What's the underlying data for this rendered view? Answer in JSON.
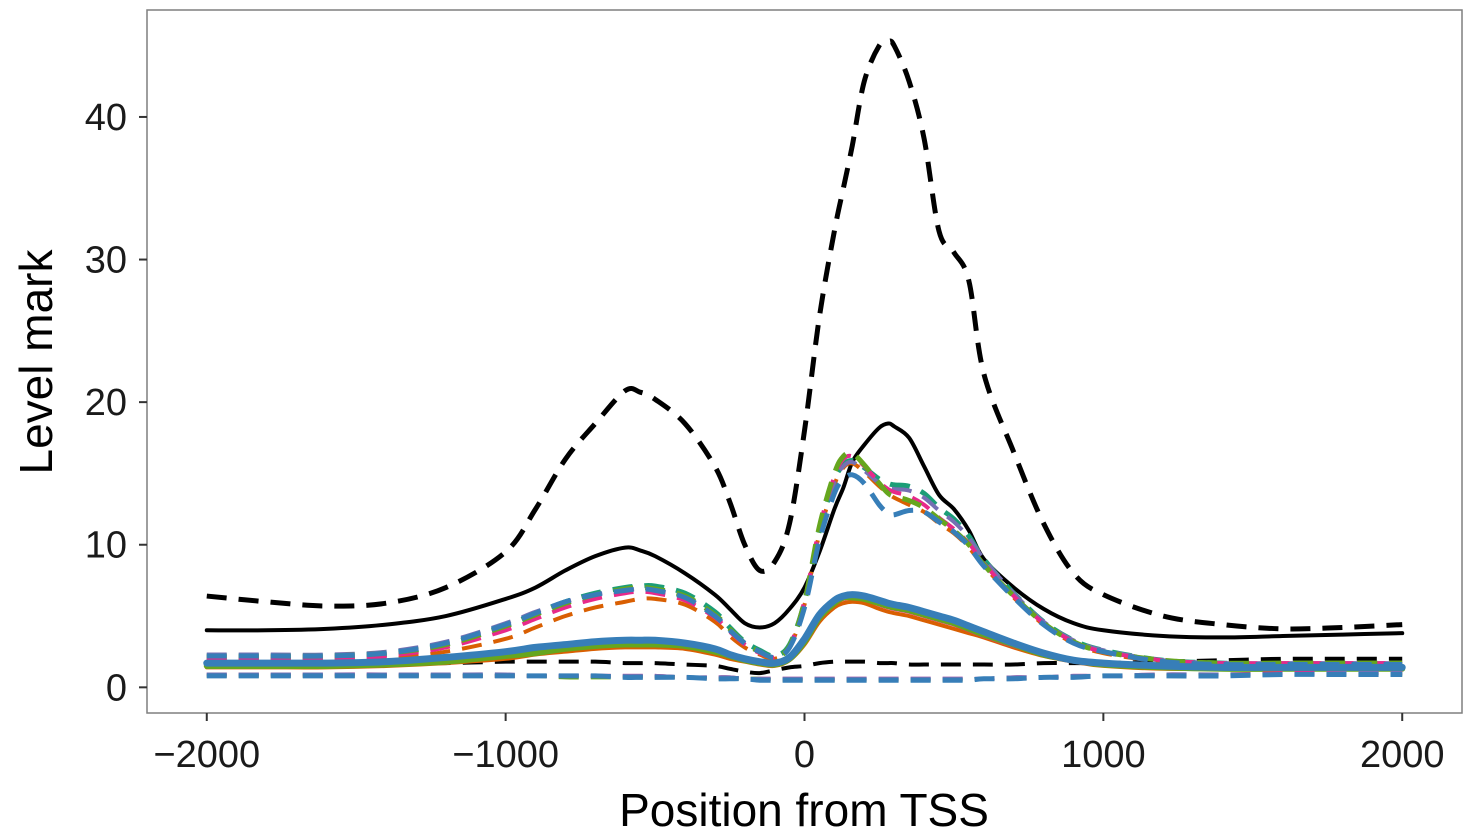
{
  "chart_data": {
    "type": "line",
    "title": "",
    "xlabel": "Position from TSS",
    "ylabel": "Level mark",
    "xlim": [
      -2200,
      2200
    ],
    "ylim": [
      -1.8,
      47.5
    ],
    "x_ticks": [
      -2000,
      -1000,
      0,
      1000,
      2000
    ],
    "x_tick_labels": [
      "−2000",
      "−1000",
      "0",
      "1000",
      "2000"
    ],
    "y_ticks": [
      0,
      10,
      20,
      30,
      40
    ],
    "y_tick_labels": [
      "0",
      "10",
      "20",
      "30",
      "40"
    ],
    "grid": false,
    "legend": "none",
    "x": [
      -2000,
      -1800,
      -1600,
      -1400,
      -1200,
      -1000,
      -900,
      -800,
      -700,
      -600,
      -550,
      -500,
      -400,
      -300,
      -250,
      -200,
      -150,
      -100,
      -50,
      0,
      50,
      100,
      130,
      160,
      200,
      250,
      280,
      300,
      350,
      400,
      450,
      500,
      550,
      600,
      700,
      800,
      900,
      1000,
      1200,
      1400,
      1600,
      1800,
      2000
    ],
    "series": [
      {
        "color": "#000000",
        "dash": "dashed",
        "width": 5,
        "values": [
          6.4,
          6.0,
          5.7,
          5.9,
          7.0,
          9.5,
          12.5,
          16.0,
          18.5,
          20.8,
          20.7,
          20.2,
          18.5,
          15.5,
          13.0,
          10.0,
          8.2,
          8.8,
          11.5,
          18.0,
          26.0,
          32.0,
          35.0,
          38.0,
          42.5,
          45.0,
          45.3,
          45.0,
          42.5,
          38.5,
          32.0,
          30.5,
          28.5,
          22.0,
          16.5,
          11.5,
          8.0,
          6.5,
          5.0,
          4.4,
          4.1,
          4.2,
          4.4
        ]
      },
      {
        "color": "#000000",
        "dash": "solid",
        "width": 4,
        "values": [
          4.0,
          4.0,
          4.1,
          4.4,
          5.0,
          6.2,
          7.0,
          8.2,
          9.2,
          9.8,
          9.6,
          9.2,
          8.0,
          6.5,
          5.5,
          4.5,
          4.2,
          4.5,
          5.5,
          7.0,
          9.5,
          12.5,
          14.0,
          15.8,
          17.0,
          18.2,
          18.5,
          18.3,
          17.5,
          15.5,
          13.5,
          12.5,
          11.0,
          9.0,
          7.0,
          5.5,
          4.5,
          4.0,
          3.6,
          3.5,
          3.6,
          3.7,
          3.8
        ]
      },
      {
        "color": "#000000",
        "dash": "dashed",
        "width": 4,
        "values": [
          1.8,
          1.8,
          1.7,
          1.7,
          1.7,
          1.8,
          1.8,
          1.8,
          1.8,
          1.7,
          1.7,
          1.7,
          1.6,
          1.5,
          1.3,
          1.1,
          1.0,
          1.2,
          1.4,
          1.5,
          1.7,
          1.8,
          1.8,
          1.8,
          1.8,
          1.7,
          1.7,
          1.7,
          1.6,
          1.6,
          1.6,
          1.6,
          1.6,
          1.6,
          1.6,
          1.7,
          1.7,
          1.7,
          1.8,
          1.9,
          2.0,
          2.0,
          2.0
        ]
      },
      {
        "color": "#1b9e77",
        "dash": "dashed",
        "width": 5,
        "values": [
          2.1,
          2.1,
          2.1,
          2.3,
          3.0,
          4.3,
          5.2,
          6.0,
          6.6,
          7.0,
          7.1,
          7.1,
          6.6,
          5.3,
          4.2,
          3.2,
          2.6,
          2.2,
          3.0,
          6.0,
          11.0,
          14.5,
          15.6,
          15.9,
          15.4,
          14.6,
          14.3,
          14.2,
          14.1,
          13.6,
          12.6,
          11.8,
          10.6,
          9.0,
          6.6,
          4.6,
          3.3,
          2.6,
          1.9,
          1.7,
          1.6,
          1.6,
          1.6
        ]
      },
      {
        "color": "#d95f02",
        "dash": "dashed",
        "width": 4,
        "values": [
          1.9,
          1.9,
          1.9,
          2.0,
          2.5,
          3.4,
          4.2,
          5.0,
          5.6,
          6.0,
          6.2,
          6.2,
          5.8,
          4.6,
          3.6,
          2.8,
          2.3,
          2.0,
          2.8,
          5.8,
          10.8,
          14.2,
          15.4,
          15.7,
          15.1,
          14.1,
          13.6,
          13.3,
          12.8,
          12.3,
          11.5,
          10.8,
          9.8,
          8.5,
          6.3,
          4.4,
          3.1,
          2.4,
          1.8,
          1.6,
          1.6,
          1.6,
          1.6
        ]
      },
      {
        "color": "#7570b3",
        "dash": "dashed",
        "width": 4,
        "values": [
          2.3,
          2.3,
          2.3,
          2.5,
          3.2,
          4.5,
          5.3,
          6.0,
          6.5,
          6.8,
          6.9,
          6.8,
          6.3,
          5.0,
          4.0,
          3.1,
          2.5,
          2.1,
          2.9,
          5.9,
          10.9,
          14.4,
          15.5,
          15.8,
          15.2,
          14.3,
          14.0,
          13.9,
          13.8,
          13.3,
          12.4,
          11.6,
          10.5,
          9.0,
          6.6,
          4.6,
          3.3,
          2.6,
          1.9,
          1.7,
          1.7,
          1.7,
          1.7
        ]
      },
      {
        "color": "#e7298a",
        "dash": "dashed",
        "width": 4,
        "values": [
          2.0,
          2.0,
          2.0,
          2.2,
          2.8,
          4.0,
          4.8,
          5.6,
          6.2,
          6.6,
          6.7,
          6.6,
          6.1,
          4.9,
          3.9,
          3.0,
          2.4,
          2.1,
          2.9,
          6.1,
          11.2,
          14.8,
          16.0,
          16.2,
          15.5,
          14.4,
          13.9,
          13.7,
          13.4,
          12.8,
          11.9,
          11.1,
          10.1,
          8.7,
          6.4,
          4.5,
          3.2,
          2.5,
          1.9,
          1.7,
          1.7,
          1.7,
          1.7
        ]
      },
      {
        "color": "#66a61e",
        "dash": "dashed",
        "width": 5,
        "values": [
          2.2,
          2.2,
          2.2,
          2.4,
          3.0,
          4.3,
          5.1,
          5.9,
          6.5,
          6.9,
          7.0,
          6.9,
          6.4,
          5.1,
          4.1,
          3.1,
          2.5,
          2.1,
          2.9,
          6.0,
          11.3,
          15.0,
          16.2,
          16.4,
          15.6,
          14.3,
          13.6,
          13.4,
          13.1,
          12.6,
          11.8,
          11.0,
          10.0,
          8.6,
          6.4,
          4.5,
          3.2,
          2.5,
          1.9,
          1.7,
          1.7,
          1.7,
          1.7
        ]
      },
      {
        "color": "#377eb8",
        "dash": "dashed",
        "width": 5,
        "values": [
          2.2,
          2.2,
          2.2,
          2.4,
          3.1,
          4.4,
          5.2,
          6.0,
          6.5,
          6.8,
          6.9,
          6.8,
          6.3,
          5.0,
          4.0,
          3.1,
          2.5,
          2.1,
          2.8,
          5.6,
          10.3,
          13.6,
          14.6,
          14.9,
          14.3,
          12.8,
          12.2,
          12.1,
          12.4,
          12.3,
          11.6,
          10.9,
          9.9,
          8.5,
          6.3,
          4.4,
          3.1,
          2.5,
          1.8,
          1.6,
          1.6,
          1.6,
          1.6
        ]
      },
      {
        "color": "#d95f02",
        "dash": "solid",
        "width": 4,
        "values": [
          1.4,
          1.4,
          1.4,
          1.5,
          1.7,
          2.0,
          2.3,
          2.5,
          2.7,
          2.8,
          2.8,
          2.8,
          2.7,
          2.3,
          2.0,
          1.8,
          1.6,
          1.5,
          1.9,
          3.0,
          4.6,
          5.6,
          5.9,
          6.0,
          5.9,
          5.5,
          5.3,
          5.2,
          5.0,
          4.7,
          4.4,
          4.1,
          3.8,
          3.5,
          2.8,
          2.2,
          1.8,
          1.5,
          1.3,
          1.3,
          1.3,
          1.3,
          1.3
        ]
      },
      {
        "color": "#e7298a",
        "dash": "solid",
        "width": 4,
        "values": [
          1.5,
          1.5,
          1.5,
          1.6,
          1.8,
          2.2,
          2.5,
          2.7,
          2.9,
          3.0,
          3.0,
          3.0,
          2.9,
          2.5,
          2.2,
          1.9,
          1.7,
          1.6,
          2.0,
          3.2,
          4.9,
          5.9,
          6.2,
          6.3,
          6.2,
          5.8,
          5.6,
          5.5,
          5.3,
          5.0,
          4.7,
          4.4,
          4.0,
          3.6,
          2.9,
          2.3,
          1.9,
          1.6,
          1.4,
          1.3,
          1.3,
          1.3,
          1.3
        ]
      },
      {
        "color": "#66a61e",
        "dash": "solid",
        "width": 6,
        "values": [
          1.5,
          1.5,
          1.5,
          1.6,
          1.8,
          2.2,
          2.4,
          2.7,
          2.9,
          3.0,
          3.0,
          3.0,
          2.9,
          2.5,
          2.2,
          1.9,
          1.7,
          1.6,
          2.0,
          3.2,
          4.9,
          5.9,
          6.3,
          6.3,
          6.2,
          5.9,
          5.7,
          5.6,
          5.4,
          5.1,
          4.8,
          4.5,
          4.1,
          3.7,
          3.0,
          2.3,
          1.9,
          1.6,
          1.4,
          1.3,
          1.3,
          1.3,
          1.3
        ]
      },
      {
        "color": "#377eb8",
        "dash": "solid",
        "width": 7,
        "values": [
          1.7,
          1.7,
          1.7,
          1.8,
          2.1,
          2.5,
          2.8,
          3.0,
          3.2,
          3.3,
          3.3,
          3.3,
          3.1,
          2.7,
          2.3,
          2.0,
          1.8,
          1.7,
          2.1,
          3.4,
          5.1,
          6.1,
          6.4,
          6.5,
          6.4,
          6.1,
          5.9,
          5.8,
          5.6,
          5.3,
          5.0,
          4.7,
          4.3,
          3.9,
          3.1,
          2.4,
          1.9,
          1.7,
          1.5,
          1.4,
          1.4,
          1.4,
          1.4
        ]
      },
      {
        "color": "#e7298a",
        "dash": "dashed",
        "width": 4,
        "values": [
          0.9,
          0.9,
          0.9,
          0.9,
          0.8,
          0.8,
          0.8,
          0.8,
          0.8,
          0.8,
          0.8,
          0.8,
          0.7,
          0.7,
          0.7,
          0.6,
          0.6,
          0.6,
          0.6,
          0.6,
          0.6,
          0.6,
          0.6,
          0.6,
          0.6,
          0.6,
          0.6,
          0.6,
          0.6,
          0.6,
          0.6,
          0.6,
          0.6,
          0.6,
          0.7,
          0.7,
          0.8,
          0.8,
          0.9,
          0.9,
          1.0,
          1.0,
          1.0
        ]
      },
      {
        "color": "#66a61e",
        "dash": "dashed",
        "width": 4,
        "values": [
          0.8,
          0.8,
          0.8,
          0.8,
          0.8,
          0.8,
          0.8,
          0.7,
          0.7,
          0.7,
          0.7,
          0.7,
          0.7,
          0.6,
          0.6,
          0.6,
          0.6,
          0.5,
          0.5,
          0.5,
          0.5,
          0.5,
          0.5,
          0.5,
          0.5,
          0.5,
          0.5,
          0.5,
          0.5,
          0.5,
          0.5,
          0.5,
          0.5,
          0.6,
          0.6,
          0.7,
          0.7,
          0.8,
          0.8,
          0.9,
          0.9,
          0.9,
          0.9
        ]
      },
      {
        "color": "#7570b3",
        "dash": "dashed",
        "width": 4,
        "values": [
          0.9,
          0.9,
          0.9,
          0.9,
          0.9,
          0.9,
          0.8,
          0.8,
          0.8,
          0.8,
          0.8,
          0.8,
          0.7,
          0.7,
          0.7,
          0.6,
          0.6,
          0.6,
          0.6,
          0.6,
          0.6,
          0.6,
          0.6,
          0.6,
          0.6,
          0.6,
          0.6,
          0.6,
          0.6,
          0.6,
          0.6,
          0.6,
          0.6,
          0.6,
          0.7,
          0.7,
          0.8,
          0.8,
          0.9,
          0.9,
          0.9,
          1.0,
          1.0
        ]
      },
      {
        "color": "#377eb8",
        "dash": "dashed",
        "width": 5,
        "values": [
          0.8,
          0.8,
          0.8,
          0.8,
          0.8,
          0.8,
          0.8,
          0.8,
          0.8,
          0.7,
          0.7,
          0.7,
          0.7,
          0.6,
          0.6,
          0.6,
          0.5,
          0.5,
          0.5,
          0.5,
          0.5,
          0.5,
          0.5,
          0.5,
          0.5,
          0.5,
          0.5,
          0.5,
          0.5,
          0.5,
          0.5,
          0.5,
          0.5,
          0.6,
          0.6,
          0.7,
          0.7,
          0.8,
          0.8,
          0.8,
          0.9,
          0.9,
          0.9
        ]
      }
    ]
  }
}
